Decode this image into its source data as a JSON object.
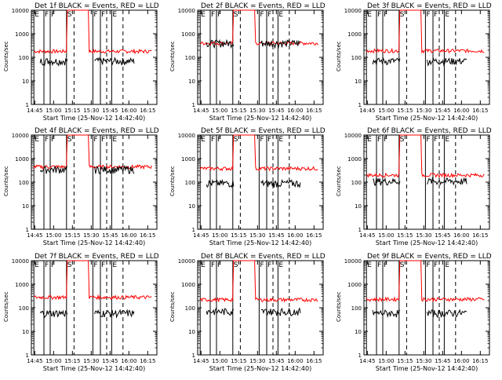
{
  "chart_data": {
    "type": "line",
    "yscale": "log",
    "ylim": [
      1,
      10000
    ],
    "y_ticks": [
      1,
      10,
      100,
      1000,
      10000
    ],
    "y_tick_labels": [
      "1",
      "10",
      "100",
      "1000",
      "10000"
    ],
    "xlim_minutes": [
      0,
      100
    ],
    "x_tick_labels": [
      "14:45",
      "15:00",
      "15:15",
      "15:30",
      "15:45",
      "16:00",
      "16:15"
    ],
    "colors": {
      "events": "#000000",
      "lld": "#ff0000",
      "frame": "#000000"
    },
    "panels": [
      {
        "title": "Det 1f BLACK = Events, RED = LLD",
        "ylabel": "Counts/sec",
        "xlabel": "Start Time (25-Nov-12 14:42:40)",
        "markers": [
          "E",
          "F",
          "F",
          "S",
          "F",
          "F",
          "E"
        ],
        "events_level": 70,
        "lld_level": 180
      },
      {
        "title": "Det 2f BLACK = Events, RED = LLD",
        "ylabel": "Counts/sec",
        "xlabel": "Start Time (25-Nov-12 14:42:40)",
        "markers": [
          "E",
          "F",
          "F",
          "S",
          "F",
          "F",
          "E"
        ],
        "events_level": 400,
        "lld_level": 400
      },
      {
        "title": "Det 3f BLACK = Events, RED = LLD",
        "ylabel": "Counts/sec",
        "xlabel": "Start Time (25-Nov-12 14:42:40)",
        "markers": [
          "E",
          "F",
          "F",
          "S",
          "F",
          "F",
          "E"
        ],
        "events_level": 70,
        "lld_level": 190
      },
      {
        "title": "Det 4f BLACK = Events, RED = LLD",
        "ylabel": "Counts/sec",
        "xlabel": "Start Time (25-Nov-12 14:42:40)",
        "markers": [
          "E",
          "F",
          "F",
          "S",
          "F",
          "F",
          "E"
        ],
        "events_level": 350,
        "lld_level": 450
      },
      {
        "title": "Det 5f BLACK = Events, RED = LLD",
        "ylabel": "Counts/sec",
        "xlabel": "Start Time (25-Nov-12 14:42:40)",
        "markers": [
          "E",
          "F",
          "F",
          "S",
          "F",
          "F",
          "E"
        ],
        "events_level": 90,
        "lld_level": 380
      },
      {
        "title": "Det 6f BLACK = Events, RED = LLD",
        "ylabel": "Counts/sec",
        "xlabel": "Start Time (25-Nov-12 14:42:40)",
        "markers": [
          "E",
          "F",
          "F",
          "S",
          "F",
          "F",
          "E"
        ],
        "events_level": 110,
        "lld_level": 200
      },
      {
        "title": "Det 7f BLACK = Events, RED = LLD",
        "ylabel": "Counts/sec",
        "xlabel": "Start Time (25-Nov-12 14:42:40)",
        "markers": [
          "E",
          "F",
          "F",
          "S",
          "F",
          "F",
          "E"
        ],
        "events_level": 60,
        "lld_level": 280
      },
      {
        "title": "Det 8f BLACK = Events, RED = LLD",
        "ylabel": "Counts/sec",
        "xlabel": "Start Time (25-Nov-12 14:42:40)",
        "markers": [
          "E",
          "F",
          "F",
          "S",
          "F",
          "F",
          "E"
        ],
        "events_level": 70,
        "lld_level": 220
      },
      {
        "title": "Det 9f BLACK = Events, RED = LLD",
        "ylabel": "Counts/sec",
        "xlabel": "Start Time (25-Nov-12 14:42:40)",
        "markers": [
          "E",
          "F",
          "F",
          "S",
          "F",
          "F",
          "E"
        ],
        "events_level": 60,
        "lld_level": 230
      }
    ]
  }
}
